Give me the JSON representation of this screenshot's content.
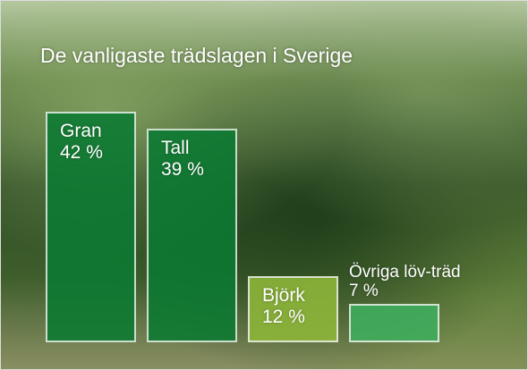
{
  "chart_data": {
    "type": "bar",
    "title": "De vanligaste trädslagen i Sverige",
    "categories": [
      "Gran",
      "Tall",
      "Björk",
      "Övriga löv-träd"
    ],
    "values": [
      42,
      39,
      12,
      7
    ],
    "value_labels": [
      "42 %",
      "39 %",
      "12 %",
      "7 %"
    ],
    "colors": [
      "#0b7a32",
      "#0b7a32",
      "#8fb83a",
      "#3fae5e"
    ]
  }
}
